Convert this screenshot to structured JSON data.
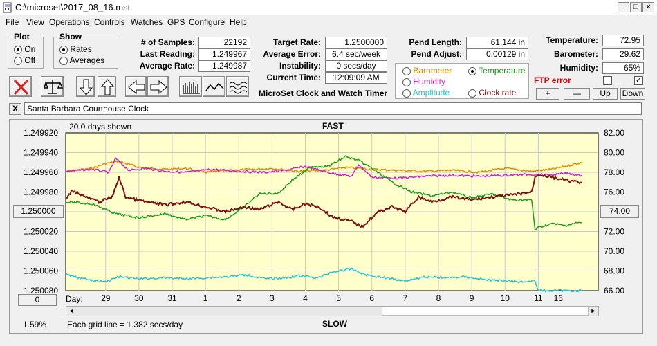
{
  "window": {
    "title": "C:\\microset\\2017_08_16.mst"
  },
  "menu": [
    "File",
    "View",
    "Operations",
    "Controls",
    "Watches",
    "GPS",
    "Configure",
    "Help"
  ],
  "plot": {
    "title": "Plot",
    "on": "On",
    "off": "Off",
    "selected": "On"
  },
  "show": {
    "title": "Show",
    "rates": "Rates",
    "averages": "Averages",
    "selected": "Rates"
  },
  "stats": {
    "samples_label": "# of Samples:",
    "samples": "22192",
    "last_label": "Last Reading:",
    "last": "1.249967",
    "avg_label": "Average Rate:",
    "avg": "1.249987",
    "target_label": "Target Rate:",
    "target": "1.2500000",
    "error_label": "Average Error:",
    "error": "6.4 sec/week",
    "instab_label": "Instability:",
    "instab": "0 secs/day",
    "time_label": "Current Time:",
    "time": "12:09:09 AM",
    "pend_len_label": "Pend Length:",
    "pend_len": "61.144 in",
    "pend_adj_label": "Pend Adjust:",
    "pend_adj": "0.00129 in",
    "temp_label": "Temperature:",
    "temp": "72.95",
    "baro_label": "Barometer:",
    "baro": "29.62",
    "hum_label": "Humidity:",
    "hum": "65%"
  },
  "app_name": "MicroSet Clock and Watch Timer",
  "sensors": {
    "barometer": "Barometer",
    "temperature": "Temperature",
    "humidity": "Humidity",
    "amplitude": "Amplitude",
    "clock_rate": "Clock rate",
    "selected": "Temperature",
    "colors": {
      "barometer": "#e68a00",
      "temperature": "#1a9e1a",
      "humidity": "#d020d0",
      "amplitude": "#18c8d8",
      "clock_rate": "#7a1010"
    }
  },
  "ftp": {
    "label": "FTP error",
    "checked_first": false,
    "checked_second": true
  },
  "adjust": {
    "plus": "+",
    "minus": "—",
    "up": "Up",
    "down": "Down"
  },
  "clock": {
    "close": "X",
    "name": "Santa Barbara Courthouse Clock"
  },
  "chart": {
    "days_shown": "20.0 days shown",
    "fast": "FAST",
    "slow": "SLOW",
    "center_btn": "1.250000",
    "right_btn": "74.00",
    "zero_btn": "0",
    "percent": "1.59%",
    "grid_note": "Each grid line = 1.382 secs/day",
    "day_label": "Day:"
  },
  "chart_data": {
    "type": "line",
    "title": "",
    "y_left_ticks": [
      "1.249920",
      "1.249940",
      "1.249960",
      "1.249980",
      "1.250000",
      "1.250020",
      "1.250040",
      "1.250060",
      "1.250080"
    ],
    "y_right_ticks": [
      "82.00",
      "80.00",
      "78.00",
      "76.00",
      "74.00",
      "72.00",
      "70.00",
      "68.00",
      "66.00"
    ],
    "x_ticks": [
      "29",
      "30",
      "31",
      "1",
      "2",
      "3",
      "4",
      "5",
      "6",
      "7",
      "8",
      "9",
      "10",
      "11",
      "16"
    ],
    "x_tick_pos": [
      1.2,
      2.2,
      3.2,
      4.2,
      5.2,
      6.2,
      7.2,
      8.2,
      9.2,
      10.2,
      11.2,
      12.2,
      13.2,
      14.2,
      14.8
    ],
    "x_range": [
      0,
      16
    ],
    "right_range": [
      66,
      82
    ],
    "left_range": [
      1.24992,
      1.25008
    ],
    "series": [
      {
        "key": "barometer",
        "color": "#e68a00",
        "x": [
          0,
          0.8,
          1.2,
          1.6,
          2.2,
          3.0,
          3.6,
          4.2,
          5.0,
          5.6,
          6.2,
          7.0,
          7.8,
          8.4,
          9.2,
          10.0,
          10.8,
          11.6,
          12.4,
          13.2,
          14.0,
          14.6,
          15.0,
          15.5
        ],
        "y": [
          78.1,
          78.4,
          78.9,
          79.1,
          78.5,
          78.3,
          78.4,
          78.0,
          78.2,
          78.3,
          78.4,
          78.1,
          78.2,
          78.5,
          78.3,
          78.2,
          78.1,
          78.2,
          78.0,
          78.4,
          78.1,
          78.3,
          78.6,
          79.0
        ]
      },
      {
        "key": "humidity",
        "color": "#d020d0",
        "x": [
          0,
          0.8,
          1.3,
          1.5,
          1.9,
          2.4,
          3.0,
          3.6,
          4.4,
          5.2,
          6.0,
          6.6,
          7.2,
          8.0,
          8.6,
          8.8,
          9.2,
          10.0,
          10.8,
          11.6,
          12.4,
          13.2,
          14.0,
          14.6,
          15.0,
          15.5
        ],
        "y": [
          78.1,
          78.3,
          78.0,
          79.4,
          78.2,
          78.4,
          78.1,
          78.0,
          78.3,
          78.1,
          78.0,
          78.2,
          78.6,
          77.9,
          77.6,
          78.8,
          77.5,
          77.4,
          77.6,
          77.7,
          77.6,
          77.7,
          77.8,
          77.7,
          77.9,
          77.7
        ]
      },
      {
        "key": "temperature",
        "color": "#1a9e1a",
        "x": [
          0,
          0.8,
          1.5,
          2.2,
          3.0,
          3.6,
          4.2,
          4.8,
          5.4,
          5.8,
          6.4,
          6.8,
          7.4,
          7.9,
          8.4,
          8.8,
          9.2,
          9.8,
          10.4,
          11.0,
          11.6,
          12.2,
          12.8,
          13.4,
          14.0,
          14.1,
          14.2,
          14.6,
          15.0,
          15.4,
          15.5
        ],
        "y": [
          75.0,
          74.8,
          73.8,
          73.4,
          73.8,
          73.2,
          73.6,
          73.2,
          74.6,
          75.8,
          75.9,
          77.2,
          78.6,
          78.6,
          79.6,
          79.2,
          78.4,
          77.0,
          76.0,
          75.6,
          76.0,
          75.4,
          75.8,
          75.2,
          75.2,
          72.2,
          72.4,
          72.8,
          72.6,
          72.9,
          72.9
        ]
      },
      {
        "key": "clock_rate",
        "color": "#7a1010",
        "x": [
          0,
          0.2,
          0.6,
          1.0,
          1.4,
          1.6,
          1.8,
          2.4,
          3.0,
          3.6,
          4.2,
          4.8,
          5.4,
          5.8,
          6.4,
          6.8,
          7.2,
          7.6,
          8.0,
          8.6,
          8.9,
          9.4,
          9.8,
          10.2,
          10.6,
          11.0,
          11.6,
          12.2,
          12.8,
          13.4,
          14.0,
          14.1,
          14.2,
          14.6,
          15.0,
          15.4,
          15.5
        ],
        "y": [
          1.249988,
          1.249978,
          1.249985,
          1.24999,
          1.249985,
          1.249965,
          1.249985,
          1.24999,
          1.249993,
          1.24999,
          1.249995,
          1.25,
          1.249995,
          1.249998,
          1.24999,
          1.249998,
          1.249992,
          1.249995,
          1.250005,
          1.25001,
          1.250015,
          1.25,
          1.249995,
          1.25,
          1.249985,
          1.24999,
          1.249985,
          1.249988,
          1.249985,
          1.249983,
          1.24998,
          1.249965,
          1.249962,
          1.249965,
          1.249968,
          1.24997,
          1.24997
        ]
      },
      {
        "key": "amplitude",
        "color": "#18c8d8",
        "x": [
          0,
          0.8,
          1.2,
          1.6,
          2.2,
          3.0,
          3.6,
          4.2,
          4.8,
          5.4,
          6.0,
          6.6,
          7.0,
          7.6,
          8.0,
          8.6,
          9.0,
          9.6,
          10.2,
          10.8,
          11.4,
          12.0,
          12.6,
          13.2,
          13.8,
          14.1,
          14.2,
          15.5
        ],
        "y": [
          67.6,
          67.0,
          66.9,
          67.4,
          67.2,
          67.3,
          67.2,
          67.3,
          67.4,
          67.6,
          67.2,
          67.3,
          67.5,
          67.3,
          67.9,
          68.2,
          67.6,
          67.3,
          67.0,
          67.4,
          67.3,
          67.4,
          67.1,
          67.0,
          66.9,
          67.0,
          66.0,
          66.0
        ]
      }
    ]
  }
}
